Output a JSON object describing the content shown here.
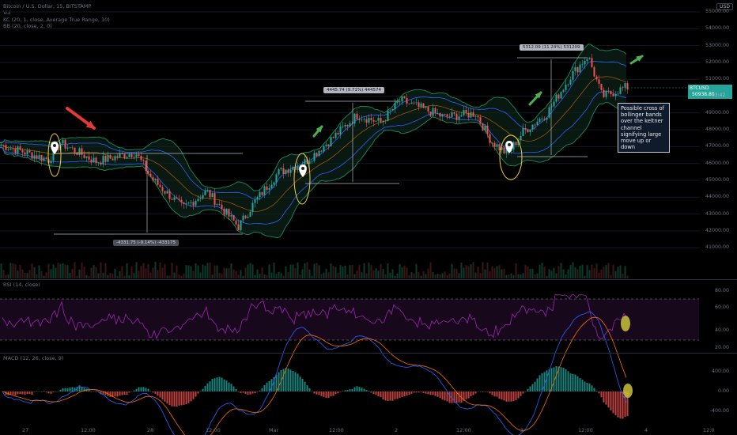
{
  "header": {
    "symbol_line": "Bitcoin / U.S. Dollar, 15, BITSTAMP",
    "indicators": [
      "Vol",
      "KC (20, 1, close, Average True Range, 10)",
      "BB (20, close, 2, 0)"
    ]
  },
  "currency_button": "USD",
  "price_axis": [
    "55000.00",
    "54000.00",
    "53000.00",
    "52000.00",
    "51000.00",
    "50000.00",
    "49000.00",
    "48000.00",
    "47000.00",
    "46000.00",
    "45000.00",
    "44000.00",
    "43000.00",
    "42000.00",
    "41000.00"
  ],
  "last_price": {
    "symbol": "BTCUSD",
    "price": "50938.80",
    "countdown": "03:42"
  },
  "measurements": [
    {
      "label": "-4331.75 (-9.14%) -433175"
    },
    {
      "label": "4445.74 (9.71%) 444574"
    },
    {
      "label": "5312.09 (11.24%) 531209"
    }
  ],
  "annotation": "Possible cross of bollinger bands over the keltner channel signifying large move up or down",
  "rsi": {
    "title": "RSI (14, close)",
    "axis": [
      "80.00",
      "60.00",
      "40.00",
      "20.00"
    ]
  },
  "macd": {
    "title": "MACD (12, 26, close, 9)",
    "axis": [
      "400.00",
      "0.00",
      "-400.00"
    ]
  },
  "time_axis": [
    {
      "label": "27"
    },
    {
      "label": "12:00"
    },
    {
      "label": "28"
    },
    {
      "label": "12:00"
    },
    {
      "label": "Mar"
    },
    {
      "label": "12:00"
    },
    {
      "label": "2"
    },
    {
      "label": "12:00"
    },
    {
      "label": "3"
    },
    {
      "label": "12:00"
    },
    {
      "label": "4"
    },
    {
      "label": "12:0"
    }
  ],
  "colors": {
    "up": "#26a69a",
    "down": "#ef5350",
    "bb": "#1b8a5a",
    "kc": "#2962ff",
    "rsi": "#9c27b0",
    "macd": "#2962ff",
    "signal": "#ff6d00",
    "arrow_red": "#e53935",
    "arrow_green": "#4caf50",
    "ellipse": "#f4d03f"
  },
  "chart_data": {
    "type": "line",
    "title": "Bitcoin / U.S. Dollar, 15, BITSTAMP",
    "price_keyframes_x": [
      0,
      60,
      75,
      120,
      170,
      190,
      230,
      260,
      300,
      320,
      350,
      385,
      420,
      450,
      480,
      505,
      560,
      600,
      620,
      640,
      660,
      690,
      720,
      742,
      760,
      790
    ],
    "price_keyframes_y": [
      47800,
      47000,
      47900,
      46900,
      47400,
      46000,
      44400,
      45300,
      43400,
      44700,
      46300,
      46900,
      48200,
      49400,
      49000,
      50200,
      49300,
      49500,
      48000,
      47300,
      48500,
      49500,
      51500,
      52600,
      50400,
      50900
    ],
    "ylim": [
      41000,
      55000
    ]
  }
}
